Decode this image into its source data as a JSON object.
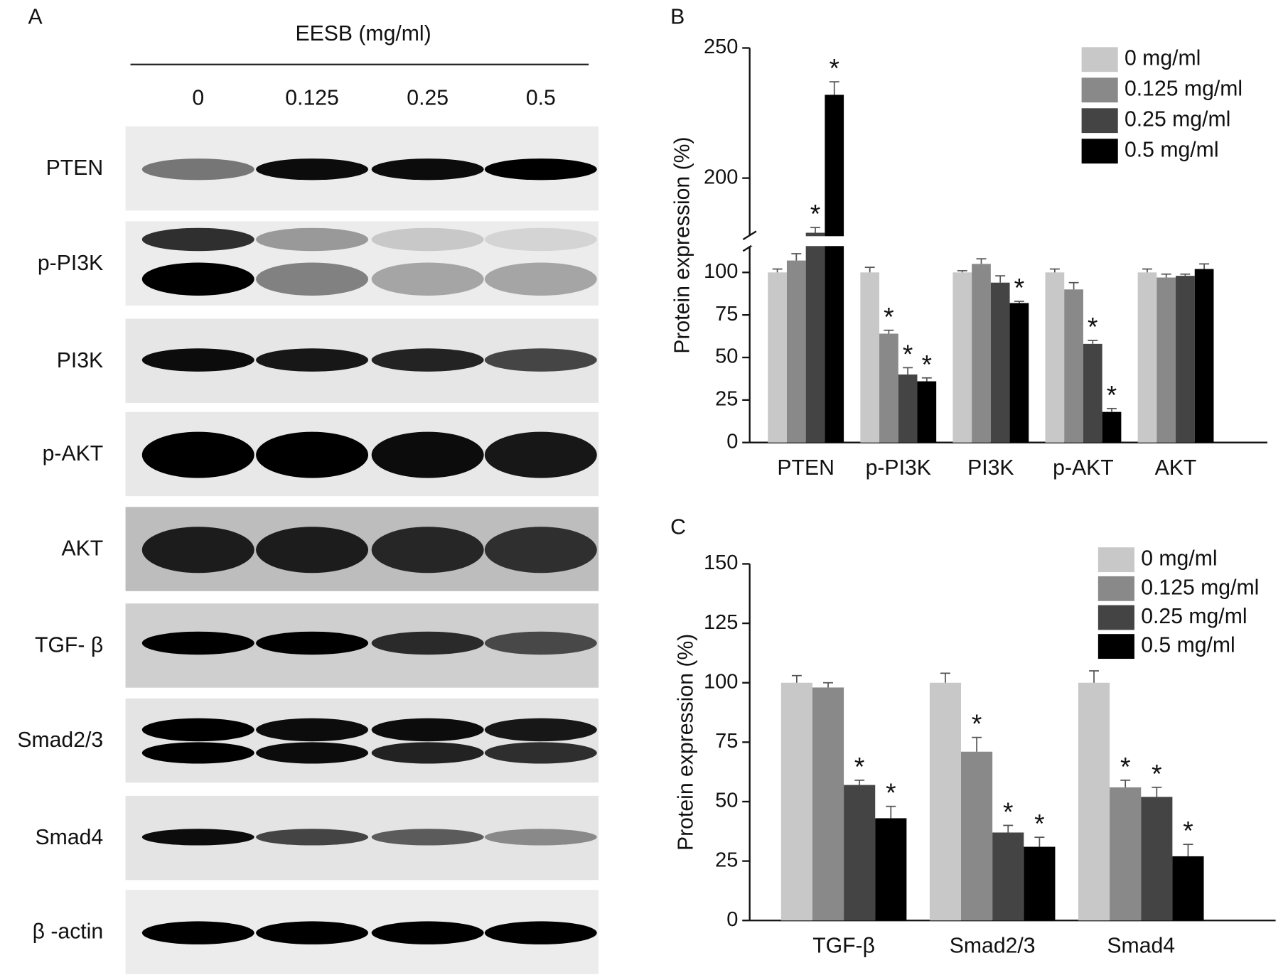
{
  "blot": {
    "panel": "A",
    "title": "EESB (mg/ml)",
    "lanes": [
      "0",
      "0.125",
      "0.25",
      "0.5"
    ],
    "proteins": [
      "PTEN",
      "p-PI3K",
      "PI3K",
      "p-AKT",
      "AKT",
      "TGF- β",
      "Smad2/3",
      "Smad4",
      "β -actin"
    ]
  },
  "chart_data": [
    {
      "type": "bar",
      "panel": "B",
      "ylabel": "Protein expression (%)",
      "categories": [
        "PTEN",
        "p-PI3K",
        "PI3K",
        "p-AKT",
        "AKT"
      ],
      "ylim": [
        0,
        250
      ],
      "ybreak": [
        115,
        178
      ],
      "yticks": [
        0,
        25,
        50,
        75,
        100,
        200,
        250
      ],
      "legend": "upper right",
      "series": [
        {
          "name": "0 mg/ml",
          "color": "#c8c8c8",
          "values": [
            100,
            100,
            100,
            100,
            100
          ],
          "errors": [
            2,
            3,
            1,
            2,
            2
          ],
          "significance": [
            null,
            null,
            null,
            null,
            null
          ]
        },
        {
          "name": "0.125 mg/ml",
          "color": "#898989",
          "values": [
            107,
            64,
            105,
            90,
            97
          ],
          "errors": [
            4,
            2,
            3,
            4,
            2
          ],
          "significance": [
            null,
            "*",
            null,
            null,
            null
          ]
        },
        {
          "name": "0.25 mg/ml",
          "color": "#444444",
          "values": [
            179,
            40,
            94,
            58,
            98
          ],
          "errors": [
            2,
            4,
            4,
            2,
            1
          ],
          "significance": [
            "*",
            "*",
            null,
            "*",
            null
          ]
        },
        {
          "name": "0.5 mg/ml",
          "color": "#000000",
          "values": [
            232,
            36,
            82,
            18,
            102
          ],
          "errors": [
            5,
            2,
            1,
            2,
            3
          ],
          "significance": [
            "*",
            "*",
            "*",
            "*",
            null
          ]
        }
      ]
    },
    {
      "type": "bar",
      "panel": "C",
      "ylabel": "Protein expression (%)",
      "categories": [
        "TGF-β",
        "Smad2/3",
        "Smad4"
      ],
      "ylim": [
        0,
        150
      ],
      "yticks": [
        0,
        25,
        50,
        75,
        100,
        125,
        150
      ],
      "legend": "upper right",
      "series": [
        {
          "name": "0 mg/ml",
          "color": "#c8c8c8",
          "values": [
            100,
            100,
            100
          ],
          "errors": [
            3,
            4,
            5
          ],
          "significance": [
            null,
            null,
            null
          ]
        },
        {
          "name": "0.125 mg/ml",
          "color": "#898989",
          "values": [
            98,
            71,
            56
          ],
          "errors": [
            2,
            6,
            3
          ],
          "significance": [
            null,
            "*",
            "*"
          ]
        },
        {
          "name": "0.25 mg/ml",
          "color": "#444444",
          "values": [
            57,
            37,
            52
          ],
          "errors": [
            2,
            3,
            4
          ],
          "significance": [
            "*",
            "*",
            "*"
          ]
        },
        {
          "name": "0.5 mg/ml",
          "color": "#000000",
          "values": [
            43,
            31,
            27
          ],
          "errors": [
            5,
            4,
            5
          ],
          "significance": [
            "*",
            "*",
            "*"
          ]
        }
      ]
    }
  ]
}
